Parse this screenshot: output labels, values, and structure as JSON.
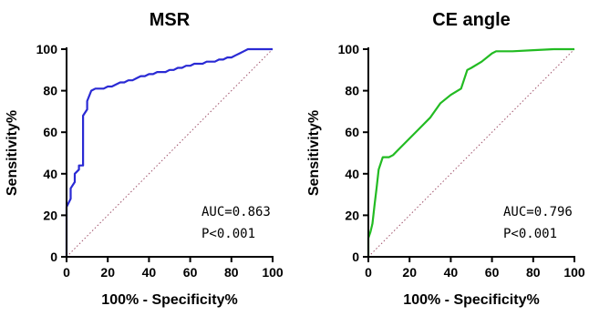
{
  "chart_data": [
    {
      "type": "line",
      "title": "MSR",
      "xlabel": "100% - Specificity%",
      "ylabel": "Sensitivity%",
      "xlim": [
        0,
        100
      ],
      "ylim": [
        0,
        100
      ],
      "xticks": [
        0,
        20,
        40,
        60,
        80,
        100
      ],
      "yticks": [
        0,
        20,
        40,
        60,
        80,
        100
      ],
      "grid": false,
      "diagonal_reference": true,
      "series": [
        {
          "color": "#2a2ad4",
          "x": [
            0,
            0,
            2,
            2,
            4,
            4,
            6,
            6,
            8,
            8,
            10,
            10,
            12,
            14,
            16,
            18,
            20,
            22,
            24,
            26,
            28,
            30,
            32,
            34,
            36,
            38,
            40,
            42,
            44,
            46,
            48,
            50,
            52,
            54,
            56,
            58,
            60,
            62,
            64,
            66,
            68,
            70,
            72,
            74,
            76,
            78,
            80,
            82,
            84,
            86,
            88,
            90,
            92,
            94,
            96,
            98,
            100
          ],
          "y": [
            0,
            24,
            28,
            33,
            36,
            40,
            42,
            44,
            44,
            68,
            71,
            75,
            80,
            81,
            81,
            81,
            82,
            82,
            83,
            84,
            84,
            85,
            85,
            86,
            87,
            87,
            88,
            88,
            89,
            89,
            89,
            90,
            90,
            91,
            91,
            92,
            92,
            93,
            93,
            93,
            94,
            94,
            94,
            95,
            95,
            96,
            96,
            97,
            98,
            99,
            100,
            100,
            100,
            100,
            100,
            100,
            100
          ]
        }
      ],
      "annotations": [
        "AUC=0.863",
        "P<0.001"
      ]
    },
    {
      "type": "line",
      "title": "CE angle",
      "xlabel": "100% - Specificity%",
      "ylabel": "Sensitivity%",
      "xlim": [
        0,
        100
      ],
      "ylim": [
        0,
        100
      ],
      "xticks": [
        0,
        20,
        40,
        60,
        80,
        100
      ],
      "yticks": [
        0,
        20,
        40,
        60,
        80,
        100
      ],
      "grid": false,
      "diagonal_reference": true,
      "series": [
        {
          "color": "#22bb22",
          "x": [
            0,
            0,
            1,
            2,
            3,
            4,
            5,
            7,
            10,
            12,
            15,
            20,
            25,
            30,
            35,
            40,
            45,
            48,
            50,
            55,
            60,
            62,
            70,
            80,
            90,
            95,
            100
          ],
          "y": [
            0,
            9,
            12,
            16,
            25,
            33,
            42,
            48,
            48,
            49,
            52,
            57,
            62,
            67,
            74,
            78,
            81,
            90,
            91,
            94,
            98,
            99,
            99,
            99.5,
            100,
            100,
            100
          ]
        }
      ],
      "annotations": [
        "AUC=0.796",
        "P<0.001"
      ]
    }
  ]
}
